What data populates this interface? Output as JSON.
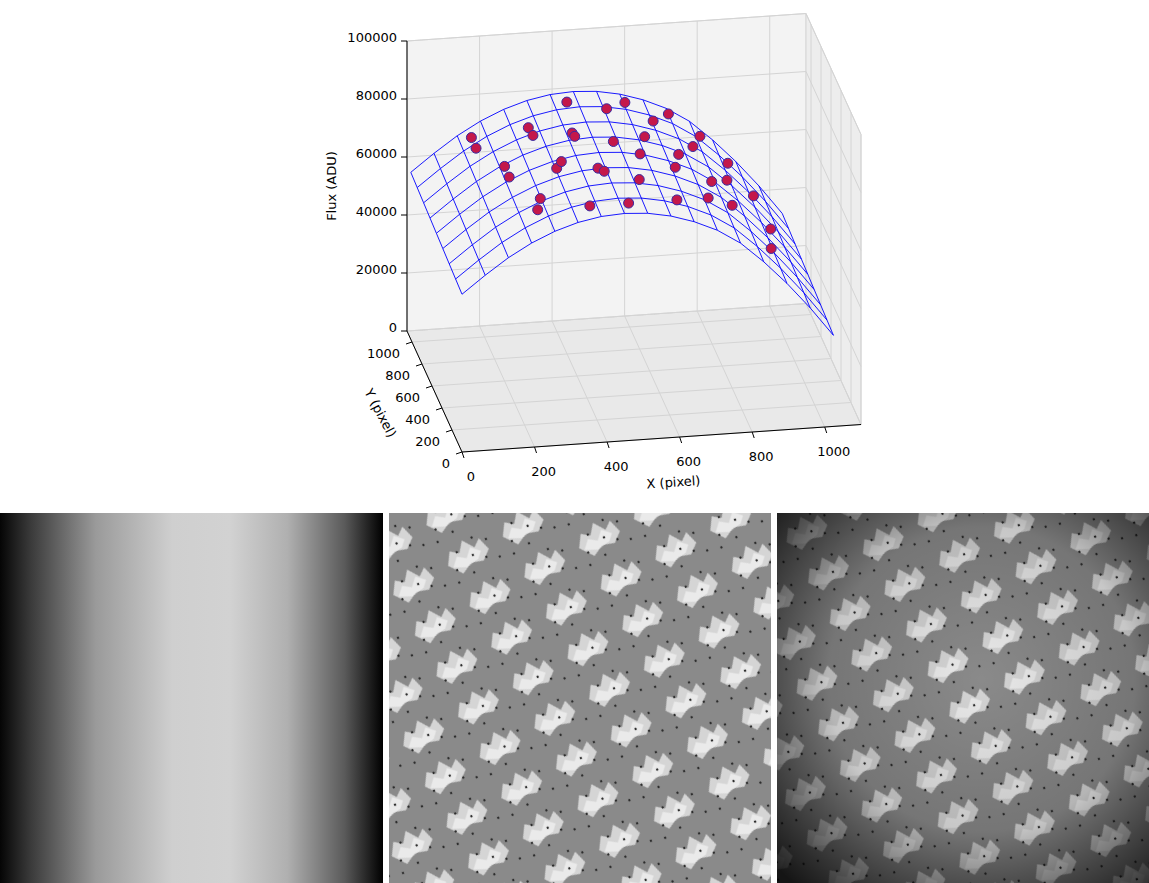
{
  "chart_data": {
    "type": "surface3d",
    "x_label": "X (pixel)",
    "y_label": "Y (pixel)",
    "z_label": "Flux (ADU)",
    "xlim": [
      0,
      1100
    ],
    "ylim": [
      0,
      1100
    ],
    "zlim": [
      0,
      100000
    ],
    "xticks": [
      0,
      200,
      400,
      600,
      800,
      1000
    ],
    "yticks": [
      0,
      200,
      400,
      600,
      800,
      1000
    ],
    "zticks": [
      0,
      20000,
      40000,
      60000,
      80000,
      100000
    ],
    "grid": true,
    "surface": {
      "color": "#0000ff",
      "x": [
        0,
        64,
        128,
        192,
        256,
        320,
        384,
        448,
        512,
        576,
        640,
        704,
        768,
        832,
        896,
        960,
        1024
      ],
      "y": [
        0,
        128,
        256,
        384,
        512,
        640,
        768,
        896,
        1024
      ],
      "z": [
        [
          54400,
          60400,
          65900,
          70400,
          73900,
          76400,
          77900,
          78400,
          77900,
          76400,
          73900,
          70400,
          65400,
          58400,
          50400,
          41400,
          31400
        ],
        [
          54800,
          60800,
          66300,
          70800,
          74300,
          76800,
          78300,
          78800,
          78300,
          76800,
          74300,
          70800,
          65800,
          58800,
          50800,
          41800,
          31800
        ],
        [
          55200,
          61200,
          66700,
          71200,
          74700,
          77200,
          78700,
          79200,
          78700,
          77200,
          74700,
          71200,
          66200,
          59200,
          51200,
          42200,
          32200
        ],
        [
          55600,
          61600,
          67100,
          71600,
          75100,
          77600,
          79100,
          79600,
          79100,
          77600,
          75100,
          71600,
          66600,
          59600,
          51600,
          42600,
          32600
        ],
        [
          56000,
          62000,
          67500,
          72000,
          75500,
          78000,
          79500,
          80000,
          79500,
          78000,
          75500,
          72000,
          67000,
          60000,
          52000,
          43000,
          33000
        ],
        [
          56400,
          62400,
          67900,
          72400,
          75900,
          78400,
          79900,
          80400,
          79900,
          78400,
          75900,
          72400,
          67400,
          60400,
          52400,
          43400,
          33400
        ],
        [
          56800,
          62800,
          68300,
          72800,
          76300,
          78800,
          80300,
          80800,
          80300,
          78800,
          76300,
          72800,
          67800,
          60800,
          52800,
          43800,
          33800
        ],
        [
          57200,
          63200,
          68700,
          73200,
          76700,
          79200,
          80700,
          81200,
          80700,
          79200,
          76700,
          73200,
          68200,
          61200,
          53200,
          44200,
          34200
        ],
        [
          57600,
          63600,
          69100,
          73600,
          77100,
          79600,
          81100,
          81600,
          81100,
          79600,
          77100,
          73600,
          68600,
          61600,
          53600,
          44600,
          34600
        ]
      ]
    },
    "points": {
      "color": "#c4184a",
      "marker": "circle",
      "x": [
        150,
        160,
        200,
        210,
        250,
        260,
        300,
        310,
        330,
        340,
        380,
        400,
        410,
        420,
        430,
        450,
        480,
        500,
        520,
        530,
        560,
        580,
        600,
        620,
        640,
        650,
        680,
        700,
        720,
        740,
        760,
        780,
        800,
        820,
        850,
        880,
        900,
        920
      ],
      "y": [
        900,
        880,
        600,
        580,
        300,
        320,
        850,
        830,
        500,
        480,
        200,
        700,
        720,
        950,
        400,
        420,
        150,
        600,
        880,
        300,
        500,
        950,
        700,
        200,
        820,
        450,
        600,
        950,
        300,
        750,
        520,
        900,
        400,
        650,
        850,
        200,
        700,
        500
      ],
      "z": [
        73000,
        70000,
        74000,
        71000,
        70000,
        73000,
        77000,
        75000,
        76000,
        79000,
        74000,
        80000,
        78000,
        81000,
        79000,
        77000,
        76000,
        80000,
        80500,
        78000,
        79000,
        79500,
        77000,
        74000,
        77500,
        75500,
        74000,
        74500,
        70000,
        70500,
        67000,
        68000,
        63000,
        62000,
        60000,
        55000,
        54000,
        50000
      ]
    }
  }
}
